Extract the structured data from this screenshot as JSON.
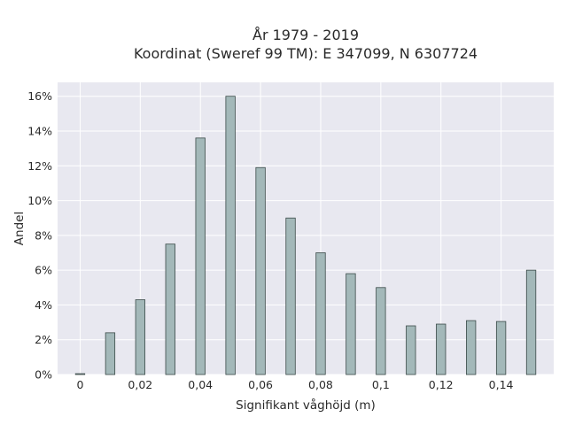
{
  "chart_data": {
    "type": "bar",
    "title": "År 1979 - 2019",
    "subtitle": "Koordinat (Sweref 99 TM): E 347099, N 6307724",
    "xlabel": "Signifikant våghöjd (m)",
    "ylabel": "Andel",
    "x": [
      0,
      0.01,
      0.02,
      0.03,
      0.04,
      0.05,
      0.06,
      0.07,
      0.08,
      0.09,
      0.1,
      0.11,
      0.12,
      0.13,
      0.14,
      0.15
    ],
    "values": [
      0.0005,
      0.024,
      0.043,
      0.075,
      0.136,
      0.16,
      0.119,
      0.09,
      0.07,
      0.058,
      0.05,
      0.028,
      0.029,
      0.031,
      0.0305,
      0.06
    ],
    "xlim": [
      -0.0075,
      0.1575
    ],
    "ylim": [
      0,
      0.168
    ],
    "x_ticks": [
      0,
      0.02,
      0.04,
      0.06,
      0.08,
      0.1,
      0.12,
      0.14
    ],
    "x_tick_labels": [
      "0",
      "0,02",
      "0,04",
      "0,06",
      "0,08",
      "0,1",
      "0,12",
      "0,14"
    ],
    "y_ticks": [
      0,
      0.02,
      0.04,
      0.06,
      0.08,
      0.1,
      0.12,
      0.14,
      0.16
    ],
    "y_tick_labels": [
      "0%",
      "2%",
      "4%",
      "6%",
      "8%",
      "10%",
      "12%",
      "14%",
      "16%"
    ],
    "grid": true,
    "colors": {
      "bar_fill": "#a3b8b9",
      "bar_stroke": "#3a4a48",
      "plot_bg": "#e8e8f0",
      "grid": "#ffffff"
    }
  }
}
